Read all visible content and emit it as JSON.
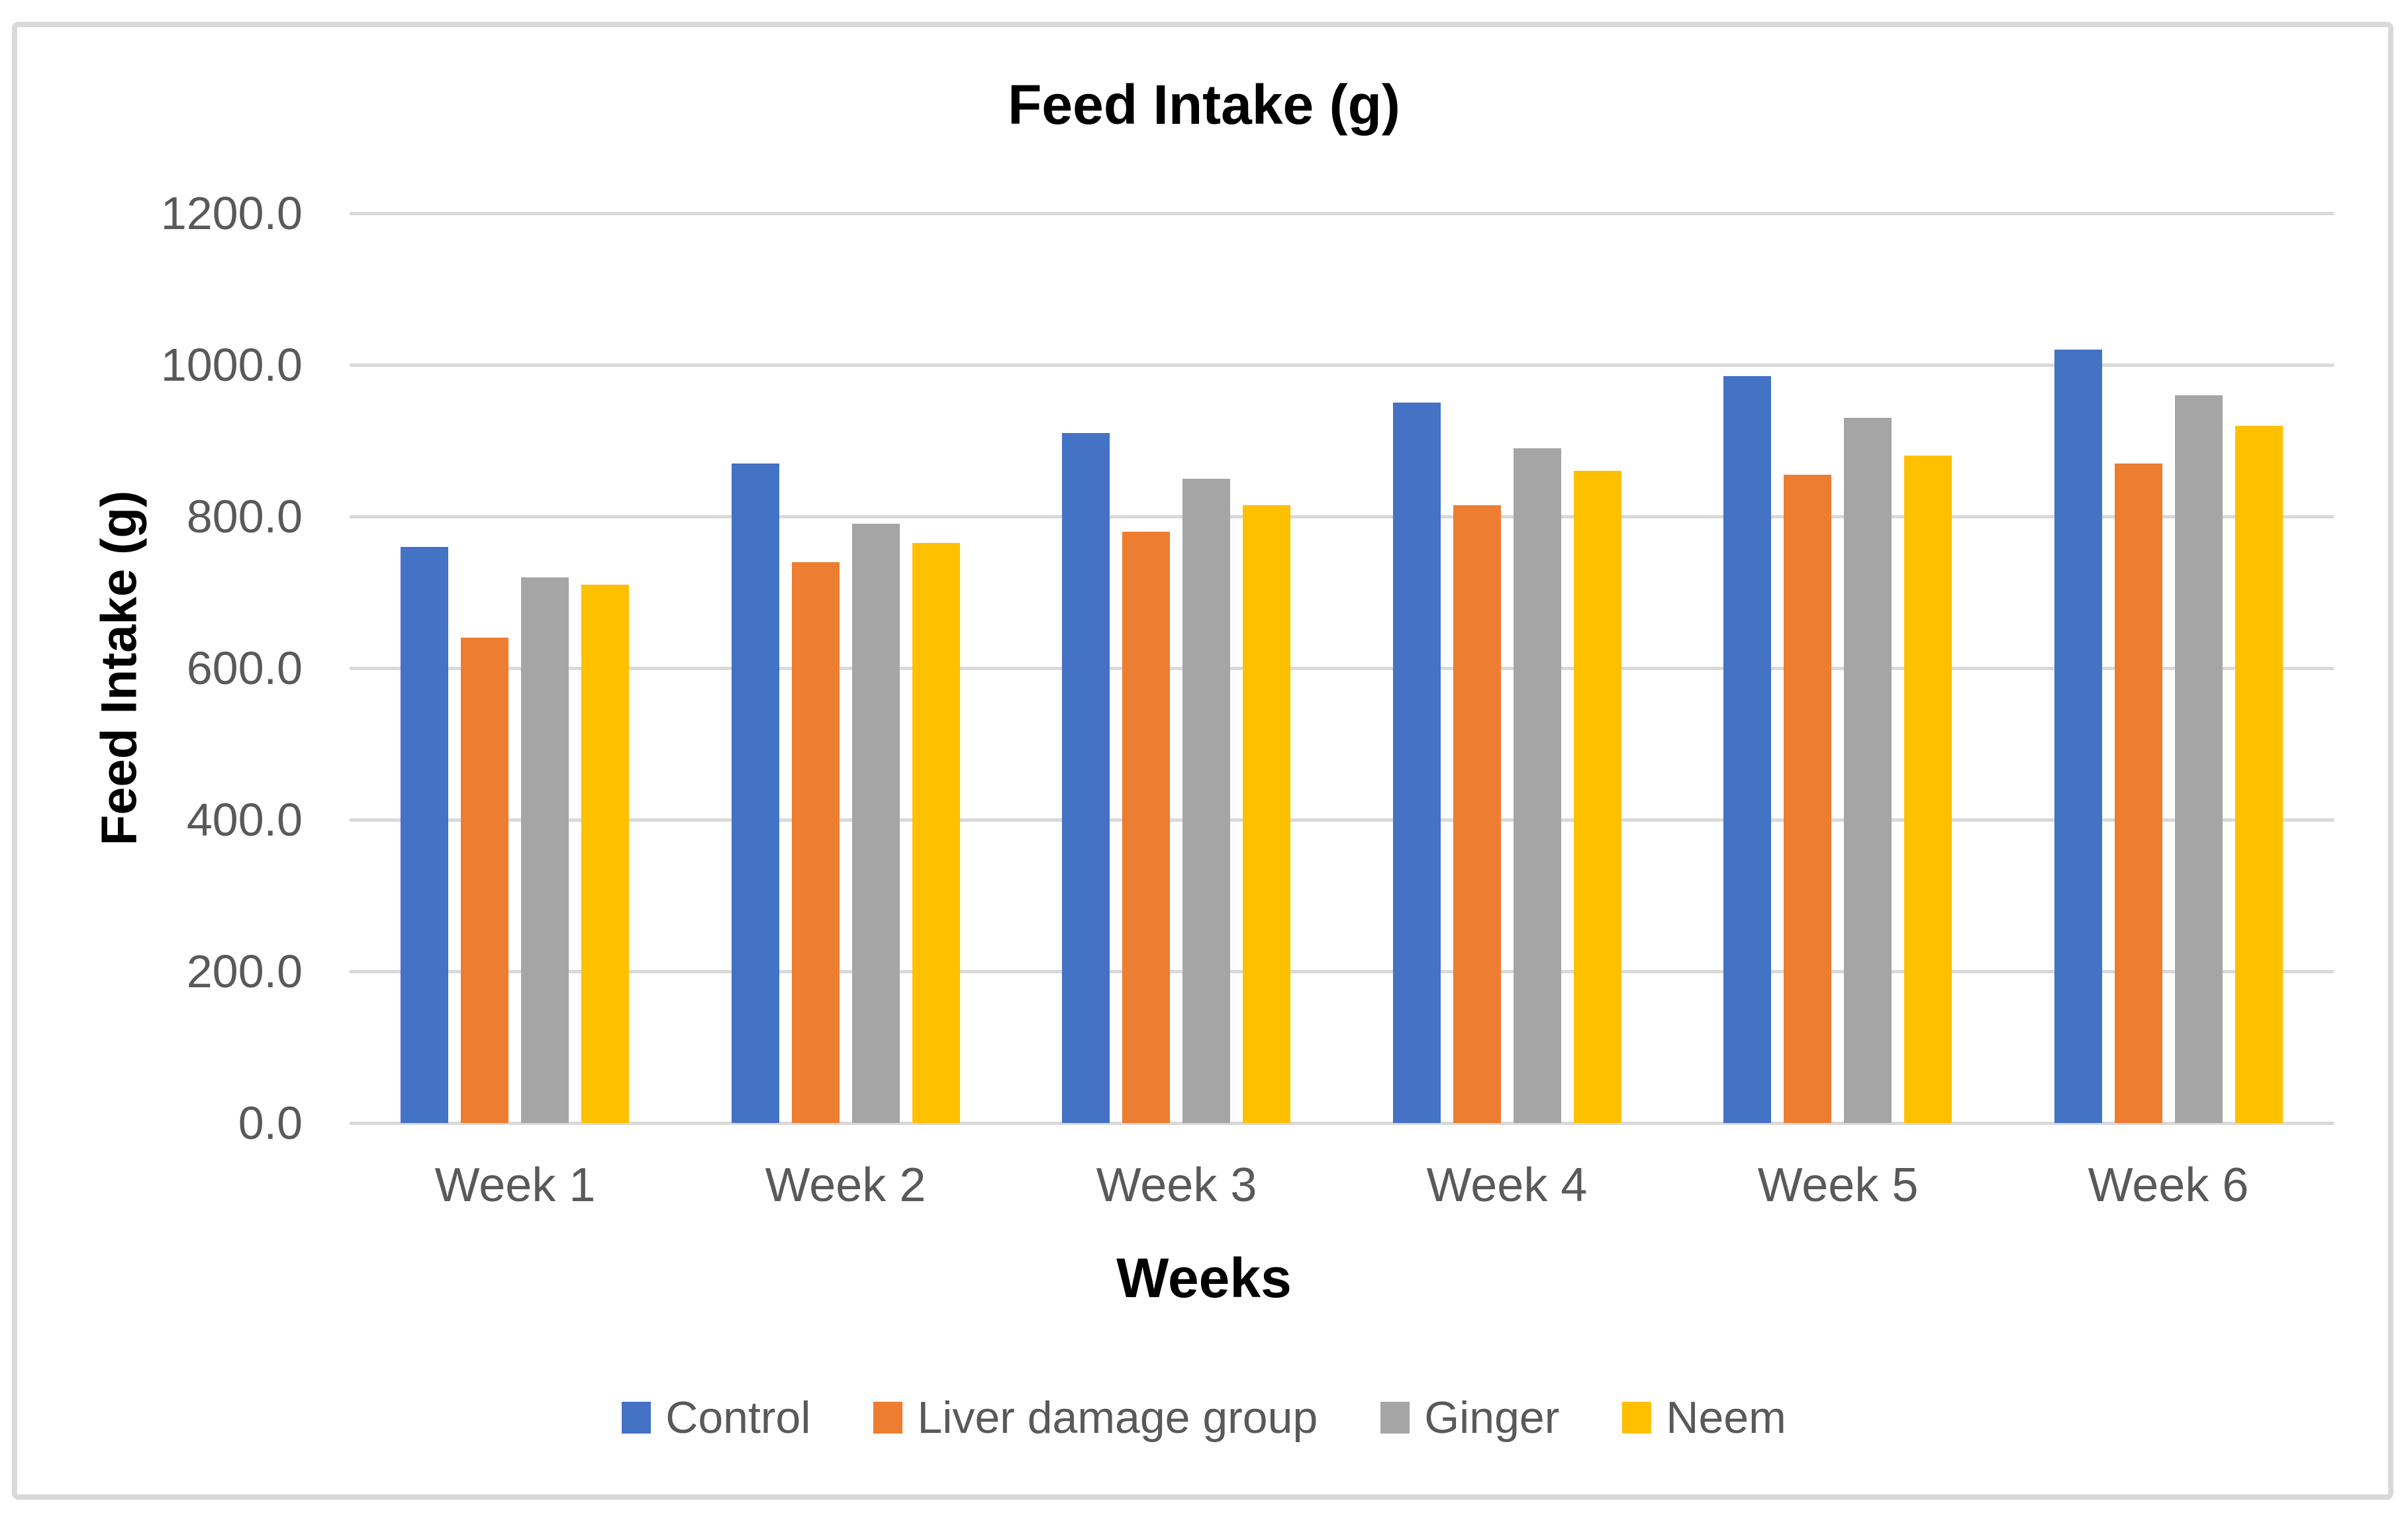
{
  "chart_data": {
    "type": "bar",
    "title": "Feed Intake (g)",
    "xlabel": "Weeks",
    "ylabel": "Feed Intake (g)",
    "categories": [
      "Week 1",
      "Week 2",
      "Week 3",
      "Week 4",
      "Week 5",
      "Week 6"
    ],
    "series": [
      {
        "name": "Control",
        "color": "#4472C4",
        "values": [
          760,
          870,
          910,
          950,
          985,
          1020
        ]
      },
      {
        "name": "Liver damage group",
        "color": "#ED7D31",
        "values": [
          640,
          740,
          780,
          815,
          855,
          870
        ]
      },
      {
        "name": "Ginger",
        "color": "#A5A5A5",
        "values": [
          720,
          790,
          850,
          890,
          930,
          960
        ]
      },
      {
        "name": "Neem",
        "color": "#FFC000",
        "values": [
          710,
          765,
          815,
          860,
          880,
          920
        ]
      }
    ],
    "ylim": [
      0,
      1200
    ],
    "ytick_interval": 200,
    "ytick_labels": [
      "1200.0",
      "1000.0",
      "800.0",
      "600.0",
      "400.0",
      "200.0",
      "0.0"
    ],
    "grid": true,
    "legend_position": "bottom",
    "text_color": "#595959",
    "gridline_color": "#D9D9D9",
    "frame_border_color": "#D9D9D9"
  }
}
